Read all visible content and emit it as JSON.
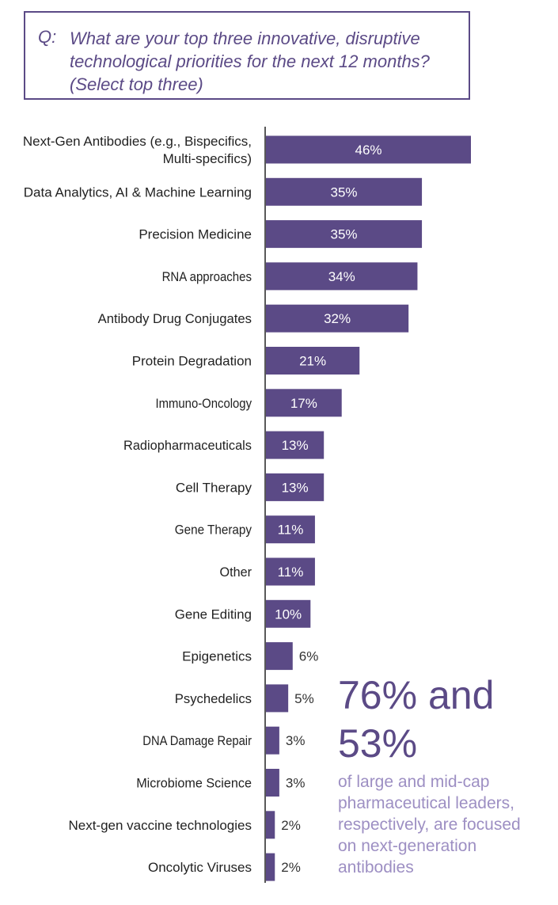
{
  "question": {
    "prefix": "Q:",
    "text": "What are your top three innovative, disruptive technological priorities for the next 12 months? (Select top three)"
  },
  "colors": {
    "bar": "#5b4a86",
    "accent_text": "#5b4a86",
    "light_text": "#9d8fc3",
    "axis": "#222222"
  },
  "chart_data": {
    "type": "bar",
    "orientation": "horizontal",
    "categories": [
      [
        "Next-Gen Antibodies (e.g., Bispecifics,",
        "Multi-specifics)"
      ],
      [
        "Data Analytics, AI & Machine Learning"
      ],
      [
        "Precision Medicine"
      ],
      [
        "RNA approaches"
      ],
      [
        "Antibody Drug Conjugates"
      ],
      [
        "Protein Degradation"
      ],
      [
        "Immuno-Oncology"
      ],
      [
        "Radiopharmaceuticals"
      ],
      [
        "Cell Therapy"
      ],
      [
        "Gene Therapy"
      ],
      [
        "Other"
      ],
      [
        "Gene Editing"
      ],
      [
        "Epigenetics"
      ],
      [
        "Psychedelics"
      ],
      [
        "DNA Damage Repair"
      ],
      [
        "Microbiome Science"
      ],
      [
        "Next-gen vaccine technologies"
      ],
      [
        "Oncolytic Viruses"
      ]
    ],
    "values": [
      46,
      35,
      35,
      34,
      32,
      21,
      17,
      13,
      13,
      11,
      11,
      10,
      6,
      5,
      3,
      3,
      2,
      2
    ],
    "value_labels": [
      "46%",
      "35%",
      "35%",
      "34%",
      "32%",
      "21%",
      "17%",
      "13%",
      "13%",
      "11%",
      "11%",
      "10%",
      "6%",
      "5%",
      "3%",
      "3%",
      "2%",
      "2%"
    ],
    "xlim": [
      0,
      46
    ],
    "grid": false
  },
  "callout": {
    "headline": "76% and 53%",
    "subtext": "of large and mid-cap pharmaceutical leaders, respectively, are focused on next-generation antibodies"
  }
}
